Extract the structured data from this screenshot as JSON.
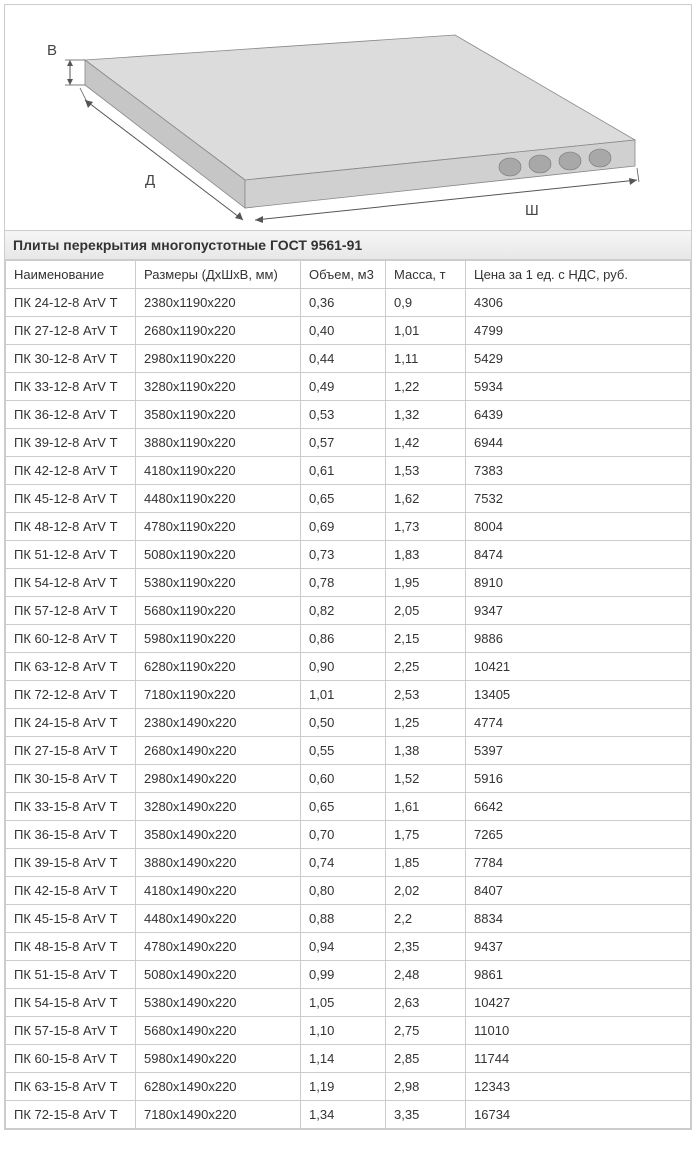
{
  "diagram": {
    "label_height": "В",
    "label_length": "Д",
    "label_width": "Ш",
    "slab_fill_top": "#dcdcdc",
    "slab_fill_side": "#c6c6c6",
    "slab_fill_front": "#d0d0d0",
    "slab_stroke": "#888",
    "hole_fill": "#a8a8a8"
  },
  "title": "Плиты перекрытия многопустотные ГОСТ 9561-91",
  "columns": [
    "Наименование",
    "Размеры (ДхШхВ, мм)",
    "Объем, м3",
    "Масса, т",
    "Цена за 1 ед. с НДС, руб."
  ],
  "rows": [
    [
      "ПК 24-12-8 АтV Т",
      "2380х1190х220",
      "0,36",
      "0,9",
      "4306"
    ],
    [
      "ПК 27-12-8 АтV Т",
      "2680х1190х220",
      "0,40",
      "1,01",
      "4799"
    ],
    [
      "ПК 30-12-8 АтV Т",
      "2980х1190х220",
      "0,44",
      "1,11",
      "5429"
    ],
    [
      "ПК 33-12-8 АтV Т",
      "3280х1190х220",
      "0,49",
      "1,22",
      "5934"
    ],
    [
      "ПК 36-12-8 АтV Т",
      "3580х1190х220",
      "0,53",
      "1,32",
      "6439"
    ],
    [
      "ПК 39-12-8 АтV Т",
      "3880х1190х220",
      "0,57",
      "1,42",
      "6944"
    ],
    [
      "ПК 42-12-8 АтV Т",
      "4180х1190х220",
      "0,61",
      "1,53",
      "7383"
    ],
    [
      "ПК 45-12-8 АтV Т",
      "4480х1190х220",
      "0,65",
      "1,62",
      "7532"
    ],
    [
      "ПК 48-12-8 АтV Т",
      "4780х1190х220",
      "0,69",
      "1,73",
      "8004"
    ],
    [
      "ПК 51-12-8 АтV Т",
      "5080х1190х220",
      "0,73",
      "1,83",
      "8474"
    ],
    [
      "ПК 54-12-8 АтV Т",
      "5380х1190х220",
      "0,78",
      "1,95",
      "8910"
    ],
    [
      "ПК 57-12-8 АтV Т",
      "5680х1190х220",
      "0,82",
      "2,05",
      "9347"
    ],
    [
      "ПК 60-12-8 АтV Т",
      "5980х1190х220",
      "0,86",
      "2,15",
      "9886"
    ],
    [
      "ПК 63-12-8 АтV Т",
      "6280х1190х220",
      "0,90",
      "2,25",
      "10421"
    ],
    [
      "ПК 72-12-8 АтV Т",
      "7180х1190х220",
      "1,01",
      "2,53",
      "13405"
    ],
    [
      "ПК 24-15-8 АтV Т",
      "2380х1490х220",
      "0,50",
      "1,25",
      "4774"
    ],
    [
      "ПК 27-15-8 АтV Т",
      "2680х1490х220",
      "0,55",
      "1,38",
      "5397"
    ],
    [
      "ПК 30-15-8 АтV Т",
      "2980х1490х220",
      "0,60",
      "1,52",
      "5916"
    ],
    [
      "ПК 33-15-8 АтV Т",
      "3280х1490х220",
      "0,65",
      "1,61",
      "6642"
    ],
    [
      "ПК 36-15-8 АтV Т",
      "3580х1490х220",
      "0,70",
      "1,75",
      "7265"
    ],
    [
      "ПК 39-15-8 АтV Т",
      "3880х1490х220",
      "0,74",
      "1,85",
      "7784"
    ],
    [
      "ПК 42-15-8 АтV Т",
      "4180х1490х220",
      "0,80",
      "2,02",
      "8407"
    ],
    [
      "ПК 45-15-8 АтV Т",
      "4480х1490х220",
      "0,88",
      "2,2",
      "8834"
    ],
    [
      "ПК 48-15-8 АтV Т",
      "4780х1490х220",
      "0,94",
      "2,35",
      "9437"
    ],
    [
      "ПК 51-15-8 АтV Т",
      "5080х1490х220",
      "0,99",
      "2,48",
      "9861"
    ],
    [
      "ПК 54-15-8 АтV Т",
      "5380х1490х220",
      "1,05",
      "2,63",
      "10427"
    ],
    [
      "ПК 57-15-8 АтV Т",
      "5680х1490х220",
      "1,10",
      "2,75",
      "11010"
    ],
    [
      "ПК 60-15-8 АтV Т",
      "5980х1490х220",
      "1,14",
      "2,85",
      "11744"
    ],
    [
      "ПК 63-15-8 АтV Т",
      "6280х1490х220",
      "1,19",
      "2,98",
      "12343"
    ],
    [
      "ПК 72-15-8 АтV Т",
      "7180х1490х220",
      "1,34",
      "3,35",
      "16734"
    ]
  ],
  "col_widths": [
    "130px",
    "165px",
    "85px",
    "80px",
    "auto"
  ]
}
